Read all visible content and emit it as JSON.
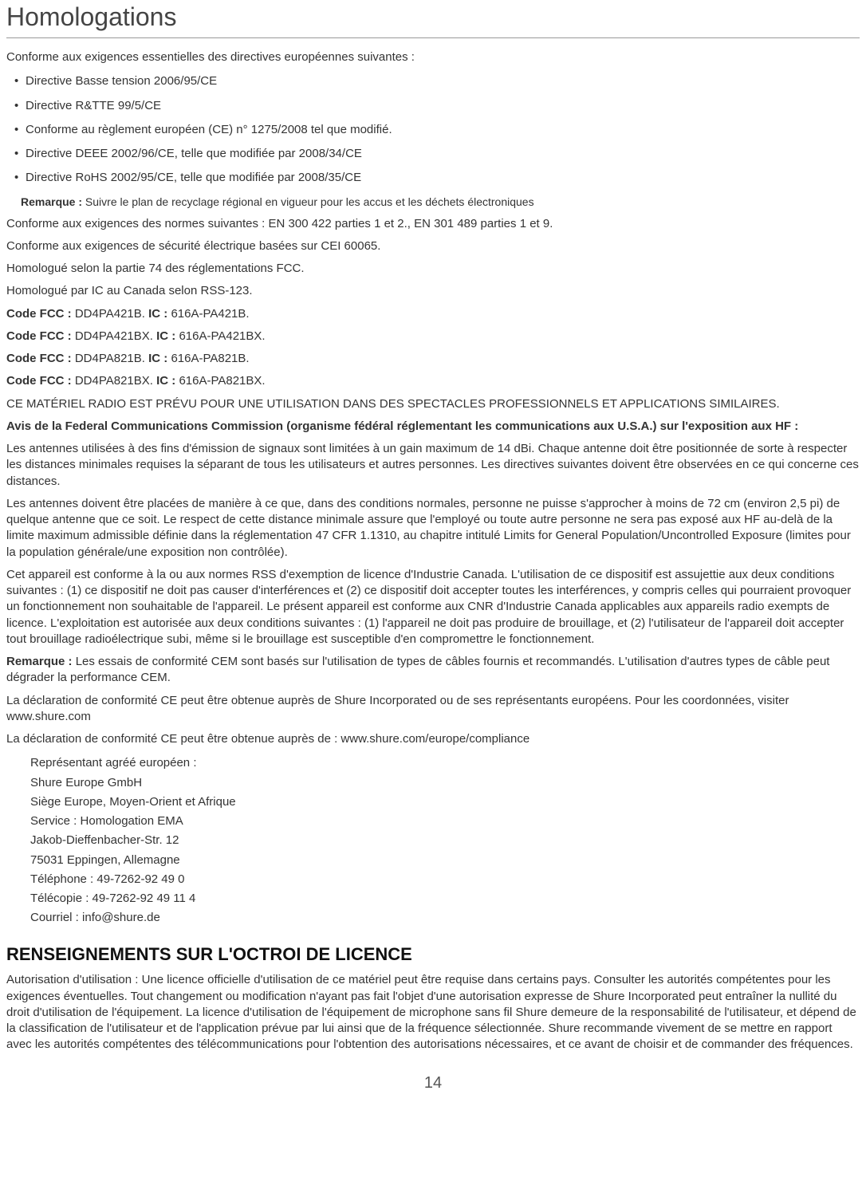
{
  "title": "Homologations",
  "intro": "Conforme aux exigences essentielles des directives européennes suivantes :",
  "bullets": [
    "Directive Basse tension 2006/95/CE",
    " Directive R&TTE 99/5/CE",
    " Conforme au règlement européen (CE) n° 1275/2008 tel que modifié.",
    " Directive DEEE 2002/96/CE, telle que modifiée par 2008/34/CE",
    "Directive RoHS 2002/95/CE, telle que modifiée par 2008/35/CE"
  ],
  "note1_label": "Remarque : ",
  "note1_text": "Suivre le plan de recyclage régional en vigueur pour les accus et les déchets électroniques",
  "p1": "Conforme aux exigences des normes suivantes : EN 300 422 parties 1 et 2., EN 301 489 parties 1 et 9.",
  "p2": "Conforme aux exigences de sécurité électrique basées sur CEI 60065.",
  "p3": "Homologué selon la partie 74 des réglementations FCC.",
  "p4": "Homologué par IC au Canada selon RSS-123.",
  "codes": [
    {
      "fcc_label": "Code FCC : ",
      "fcc_val": "DD4PA421B. ",
      "ic_label": "IC : ",
      "ic_val": "616A-PA421B."
    },
    {
      "fcc_label": "Code FCC : ",
      "fcc_val": "DD4PA421BX. ",
      "ic_label": "IC : ",
      "ic_val": "616A-PA421BX."
    },
    {
      "fcc_label": "Code FCC : ",
      "fcc_val": "DD4PA821B. ",
      "ic_label": "IC : ",
      "ic_val": "616A-PA821B."
    },
    {
      "fcc_label": "Code FCC : ",
      "fcc_val": "DD4PA821BX. ",
      "ic_label": "IC : ",
      "ic_val": "616A-PA821BX."
    }
  ],
  "p5": "CE MATÉRIEL RADIO EST PRÉVU POUR UNE UTILISATION DANS DES SPECTACLES PROFESSIONNELS ET APPLICATIONS SIMILAIRES.",
  "p6_bold": "Avis de la Federal Communications Commission (organisme fédéral réglementant les communications aux U.S.A.) sur l'exposition aux HF :",
  "p7": "Les antennes utilisées à des fins d'émission de signaux sont limitées à un gain maximum de 14 dBi. Chaque antenne doit être positionnée de sorte à respecter les distances minimales requises la séparant de tous les utilisateurs et autres personnes. Les directives suivantes doivent être observées en ce qui concerne ces distances.",
  "p8": "Les antennes doivent être placées de manière à ce que, dans des conditions normales, personne ne puisse s'approcher à moins de 72 cm (environ 2,5 pi) de quelque antenne que ce soit. Le respect de cette distance minimale assure que l'employé ou toute autre personne ne sera pas exposé aux HF au-delà de la limite maximum admissible définie dans la réglementation 47 CFR 1.1310, au chapitre intitulé Limits for General Population/Uncontrolled Exposure (limites pour la population générale/une exposition non contrôlée).",
  "p9": "Cet appareil est conforme à la ou aux normes RSS d'exemption de licence d'Industrie Canada. L'utilisation de ce dispositif est assujettie aux deux conditions suivantes : (1) ce dispositif ne doit pas causer d'interférences et (2) ce dispositif doit accepter toutes les interférences, y compris celles qui pourraient provoquer un fonctionnement non souhaitable de l'appareil. Le présent appareil est conforme aux CNR d'Industrie Canada applicables aux appareils radio exempts de licence. L'exploitation est autorisée aux deux conditions suivantes : (1) l'appareil ne doit pas produire de brouillage, et (2) l'utilisateur de l'appareil doit accepter tout brouillage radioélectrique subi, même si le brouillage est susceptible d'en compromettre le fonctionnement.",
  "p10_label": "Remarque : ",
  "p10_text": "Les essais de conformité CEM sont basés sur l'utilisation de types de câbles fournis et recommandés. L'utilisation d'autres types de câble peut dégrader la performance CEM.",
  "p11": "La déclaration de conformité CE peut être obtenue auprès de Shure Incorporated ou de ses représentants européens. Pour les coordonnées, visiter www.shure.com",
  "p12": "La déclaration de conformité CE peut être obtenue auprès de : www.shure.com/europe/compliance",
  "address": [
    "Représentant agréé européen :",
    "Shure Europe GmbH",
    "Siège Europe, Moyen-Orient et Afrique",
    "Service : Homologation EMA",
    "Jakob-Dieffenbacher-Str. 12",
    "75031 Eppingen, Allemagne",
    "Téléphone : 49-7262-92 49 0",
    "Télécopie : 49-7262-92 49 11 4",
    "Courriel : info@shure.de"
  ],
  "section2_title": "RENSEIGNEMENTS SUR L'OCTROI DE LICENCE",
  "section2_body": "Autorisation d'utilisation : Une licence officielle d'utilisation de ce matériel peut être requise dans certains pays. Consulter les autorités compétentes pour les exigences éventuelles. Tout changement ou modification n'ayant pas fait l'objet d'une autorisation expresse de Shure Incorporated peut entraîner la nullité du droit d'utilisation de l'équipement. La licence d'utilisation de l'équipement de microphone sans fil Shure demeure de la responsabilité de l'utilisateur, et dépend de la classification de l'utilisateur et de l'application prévue par lui ainsi que de la fréquence sélectionnée. Shure recommande vivement de se mettre en rapport avec les autorités compétentes des télécommunications pour l'obtention des autorisations nécessaires, et ce avant de choisir et de commander des fréquences.",
  "page_number": "14"
}
